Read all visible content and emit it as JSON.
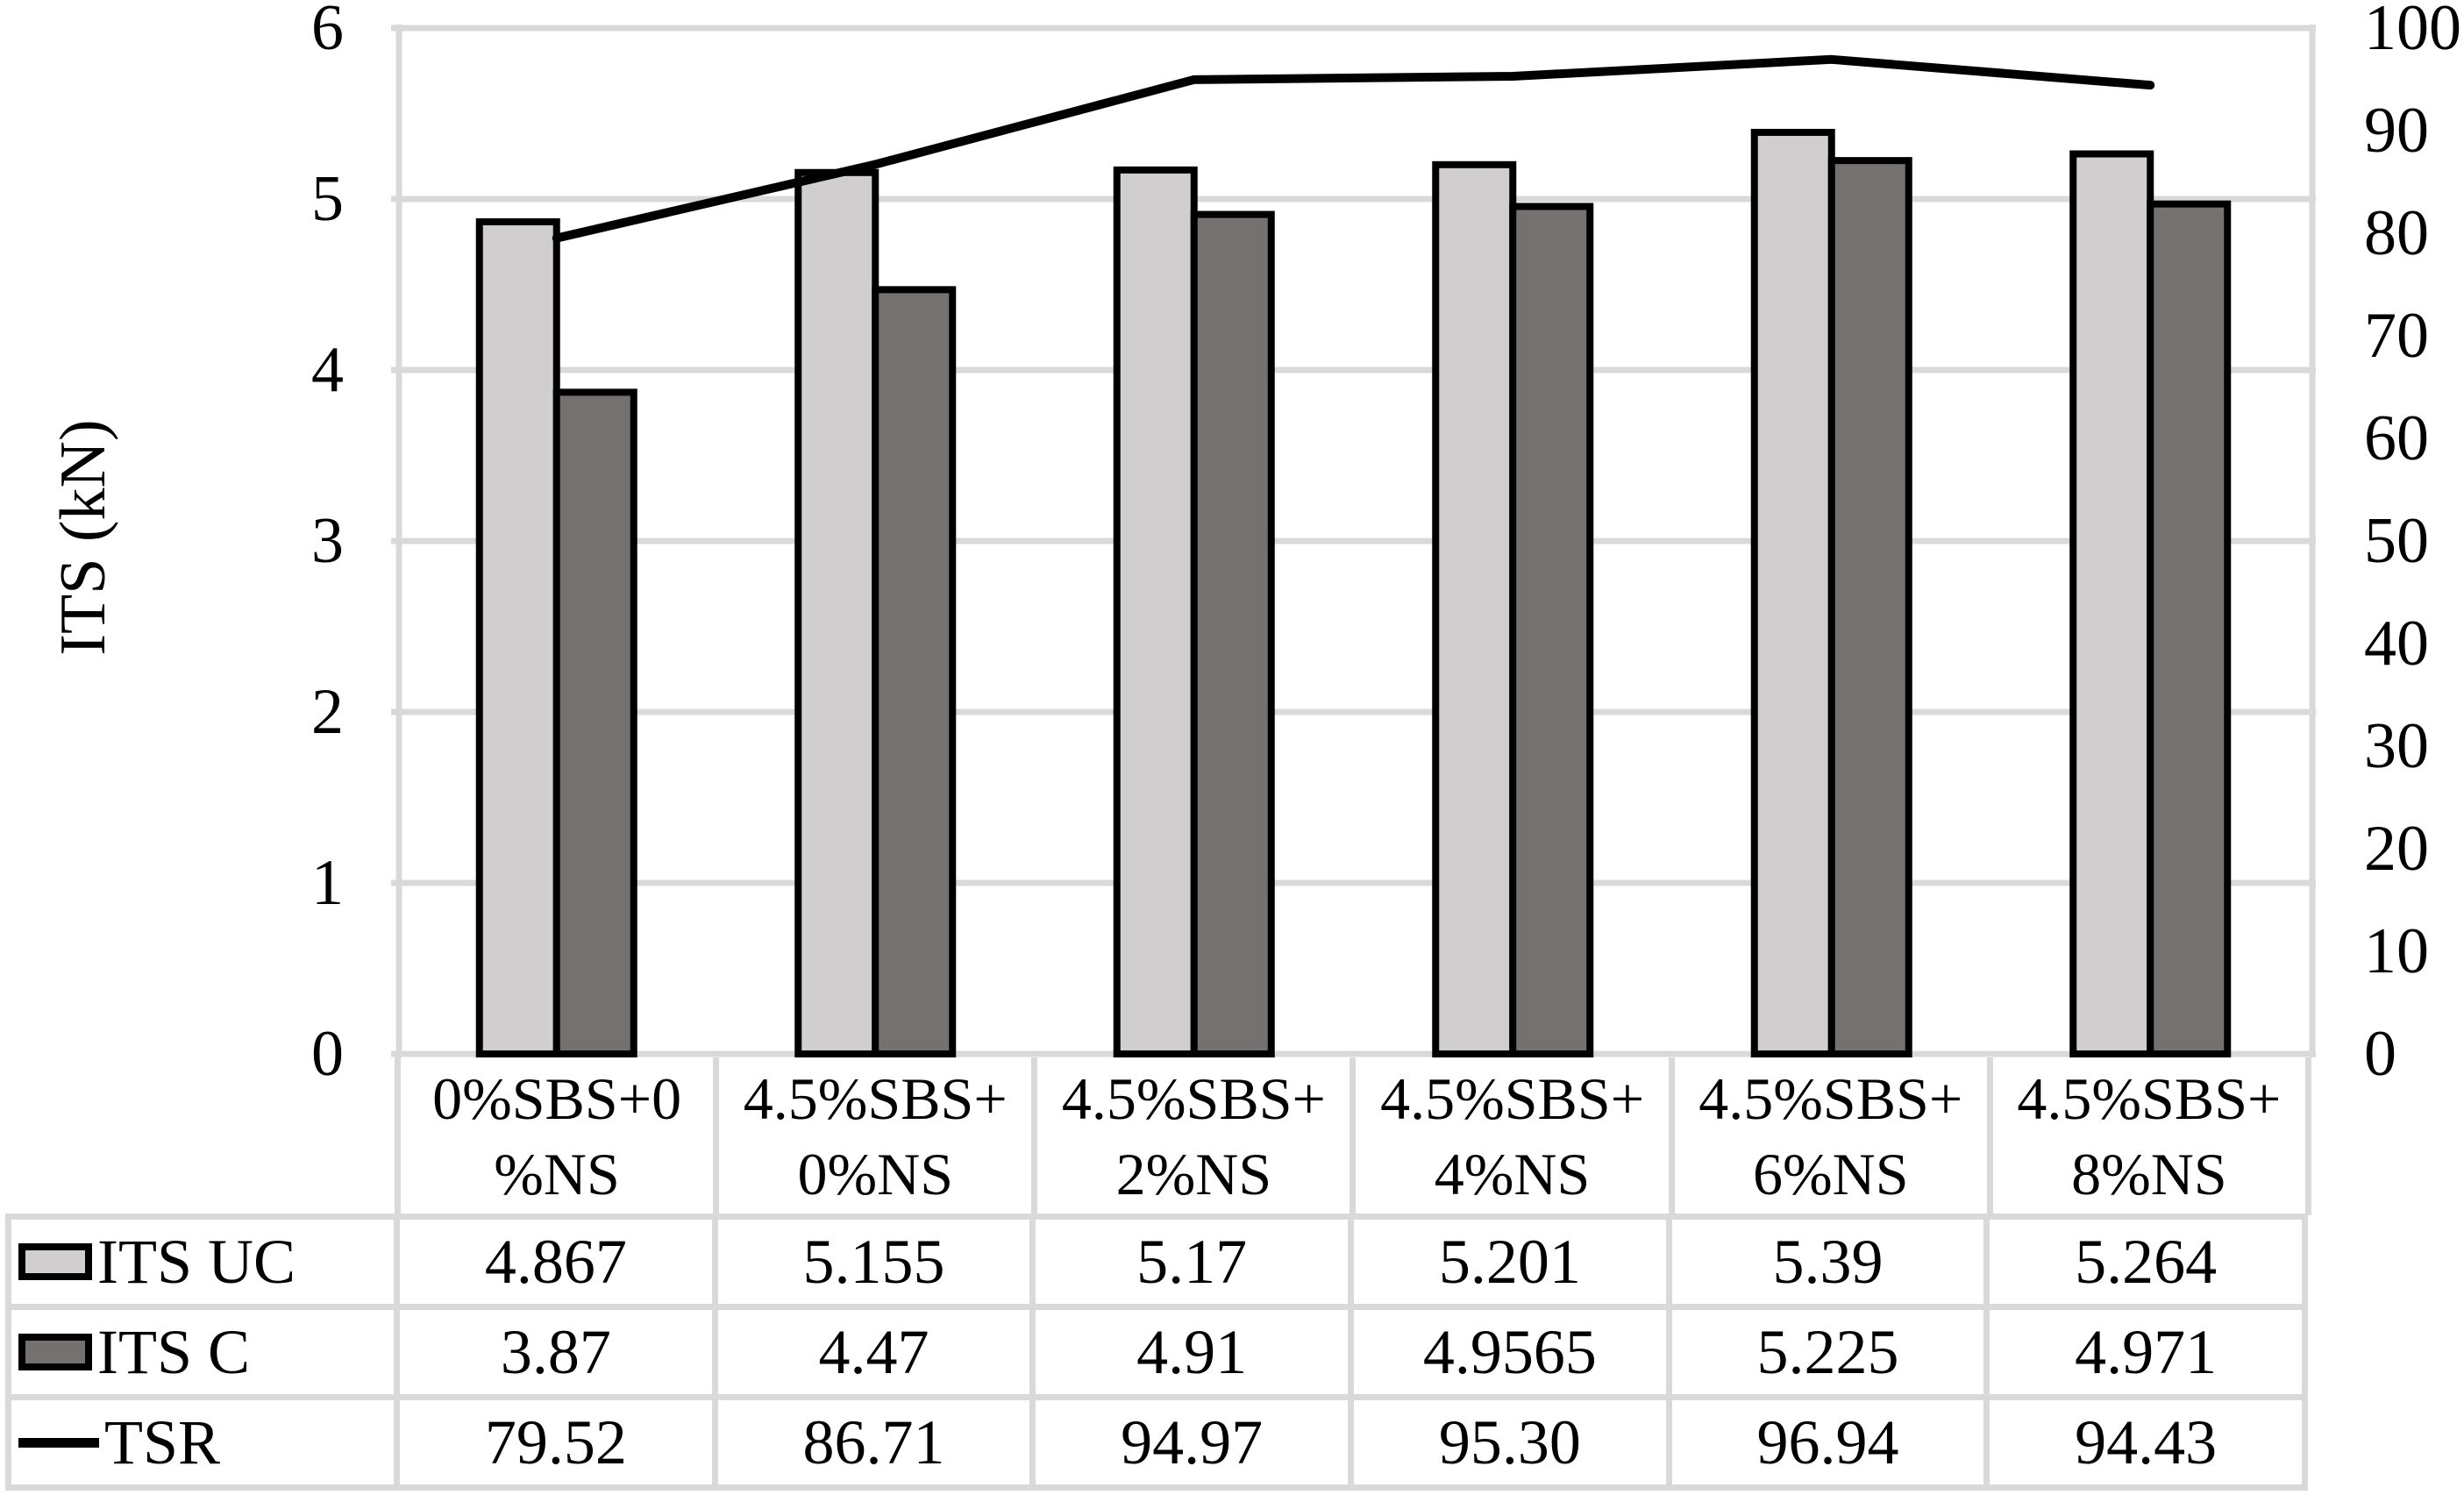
{
  "chart_data": {
    "type": "combo",
    "title": "",
    "categories": [
      "0%SBS+0%NS",
      "4.5%SBS+0%NS",
      "4.5%SBS+2%NS",
      "4.5%SBS+4%NS",
      "4.5%SBS+6%NS",
      "4.5%SBS+8%NS"
    ],
    "category_label_lines": [
      [
        "0%SBS+0",
        "%NS"
      ],
      [
        "4.5%SBS+",
        "0%NS"
      ],
      [
        "4.5%SBS+",
        "2%NS"
      ],
      [
        "4.5%SBS+",
        "4%NS"
      ],
      [
        "4.5%SBS+",
        "6%NS"
      ],
      [
        "4.5%SBS+",
        "8%NS"
      ]
    ],
    "series": [
      {
        "name": "ITS UC",
        "type": "bar",
        "axis": "left",
        "color": "#d0cece",
        "border_color": "#000000",
        "values": [
          4.867,
          5.155,
          5.17,
          5.201,
          5.39,
          5.264
        ],
        "display_values": [
          "4.867",
          "5.155",
          "5.17",
          "5.201",
          "5.39",
          "5.264"
        ]
      },
      {
        "name": "ITS C",
        "type": "bar",
        "axis": "left",
        "color": "#767171",
        "border_color": "#000000",
        "values": [
          3.87,
          4.47,
          4.91,
          4.9565,
          5.225,
          4.971
        ],
        "display_values": [
          "3.87",
          "4.47",
          "4.91",
          "4.9565",
          "5.225",
          "4.971"
        ]
      },
      {
        "name": "TSR",
        "type": "line",
        "axis": "right",
        "color": "#000000",
        "values": [
          79.52,
          86.71,
          94.97,
          95.3,
          96.94,
          94.43
        ],
        "display_values": [
          "79.52",
          "86.71",
          "94.97",
          "95.30",
          "96.94",
          "94.43"
        ]
      }
    ],
    "left_axis": {
      "label": "ITS (kN)",
      "min": 0,
      "max": 6,
      "step": 1,
      "ticks": [
        "0",
        "1",
        "2",
        "3",
        "4",
        "5",
        "6"
      ]
    },
    "right_axis": {
      "min": 0,
      "max": 100,
      "step": 10,
      "ticks": [
        "0",
        "10",
        "20",
        "30",
        "40",
        "50",
        "60",
        "70",
        "80",
        "90",
        "100"
      ]
    },
    "legend_position": "table-left",
    "grid": {
      "horizontal": true,
      "color": "#d9d9d9"
    },
    "plot_border_color": "#d9d9d9",
    "background": "#ffffff"
  }
}
